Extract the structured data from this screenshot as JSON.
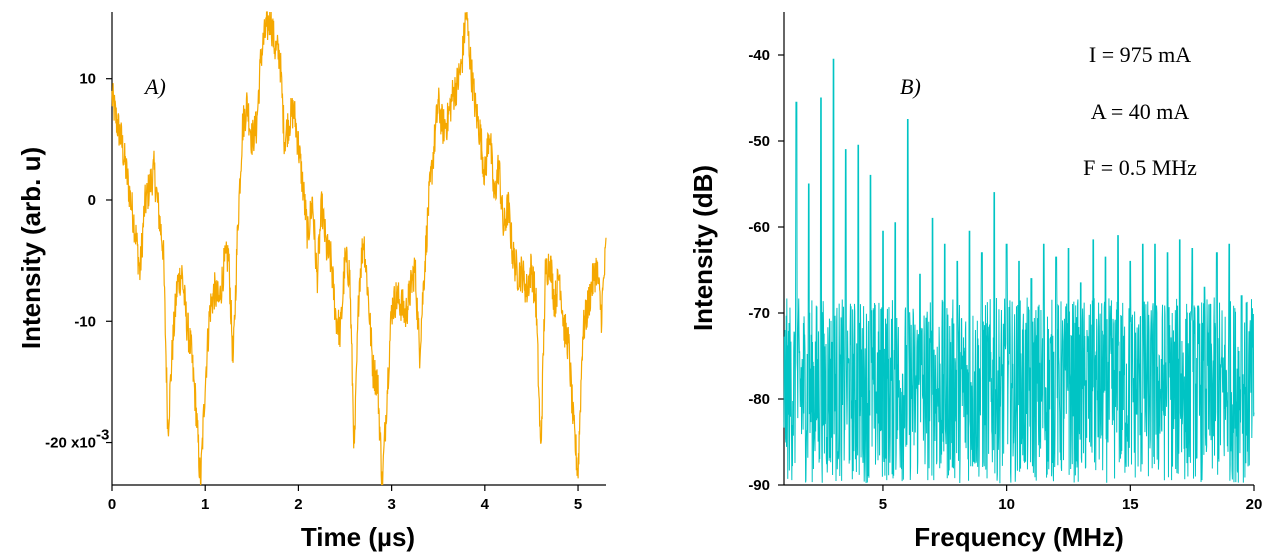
{
  "colors": {
    "left_trace": "#F5A800",
    "right_trace": "#00C4C4"
  },
  "chart_data": [
    {
      "type": "line",
      "panel_label": "A)",
      "xlabel": "Time (µs)",
      "ylabel": "Intensity (arb. u)",
      "xlim": [
        0,
        5.3
      ],
      "ylim": [
        -0.0235,
        0.0155
      ],
      "x_ticks": [
        {
          "value": 0,
          "label": "0"
        },
        {
          "value": 1,
          "label": "1"
        },
        {
          "value": 2,
          "label": "2"
        },
        {
          "value": 3,
          "label": "3"
        },
        {
          "value": 4,
          "label": "4"
        },
        {
          "value": 5,
          "label": "5"
        }
      ],
      "y_ticks": [
        {
          "value": 0.01,
          "label": "10"
        },
        {
          "value": 0,
          "label": "0"
        },
        {
          "value": -0.01,
          "label": "-10"
        },
        {
          "value": -0.02,
          "label": "-20 x10"
        }
      ],
      "y_tick_exponent": "-3",
      "series": [
        {
          "color": "#F5A800",
          "x": [
            0,
            0.05,
            0.1,
            0.15,
            0.2,
            0.25,
            0.3,
            0.35,
            0.4,
            0.45,
            0.5,
            0.55,
            0.6,
            0.65,
            0.7,
            0.75,
            0.8,
            0.85,
            0.9,
            0.95,
            1.0,
            1.05,
            1.1,
            1.15,
            1.2,
            1.25,
            1.3,
            1.35,
            1.4,
            1.45,
            1.5,
            1.55,
            1.6,
            1.65,
            1.7,
            1.75,
            1.8,
            1.85,
            1.9,
            1.95,
            2.0,
            2.05,
            2.1,
            2.15,
            2.2,
            2.25,
            2.3,
            2.35,
            2.4,
            2.45,
            2.5,
            2.55,
            2.6,
            2.65,
            2.7,
            2.75,
            2.8,
            2.85,
            2.9,
            2.95,
            3.0,
            3.05,
            3.1,
            3.15,
            3.2,
            3.25,
            3.3,
            3.35,
            3.4,
            3.45,
            3.5,
            3.55,
            3.6,
            3.65,
            3.7,
            3.75,
            3.8,
            3.85,
            3.9,
            3.95,
            4.0,
            4.05,
            4.1,
            4.15,
            4.2,
            4.25,
            4.3,
            4.35,
            4.4,
            4.45,
            4.5,
            4.55,
            4.6,
            4.65,
            4.7,
            4.75,
            4.8,
            4.85,
            4.9,
            4.95,
            5.0,
            5.05,
            5.1,
            5.15,
            5.2,
            5.25,
            5.3
          ],
          "y": [
            0.0085,
            0.0065,
            0.005,
            0.0025,
            0.0,
            -0.0025,
            -0.006,
            -0.0005,
            0.001,
            0.0025,
            -0.001,
            -0.004,
            -0.019,
            -0.012,
            -0.007,
            -0.006,
            -0.01,
            -0.0125,
            -0.017,
            -0.0235,
            -0.015,
            -0.009,
            -0.0075,
            -0.0085,
            -0.0055,
            -0.0045,
            -0.0135,
            -0.002,
            0.006,
            0.008,
            0.005,
            0.006,
            0.012,
            0.014,
            0.015,
            0.0125,
            0.012,
            0.005,
            0.0065,
            0.0075,
            0.0045,
            0.001,
            -0.003,
            0.0,
            -0.0065,
            -0.0005,
            -0.004,
            -0.005,
            -0.0095,
            -0.011,
            -0.005,
            -0.006,
            -0.021,
            -0.007,
            -0.003,
            -0.008,
            -0.014,
            -0.015,
            -0.0235,
            -0.016,
            -0.009,
            -0.008,
            -0.0085,
            -0.0095,
            -0.0075,
            -0.0055,
            -0.0125,
            -0.006,
            0.0,
            0.004,
            0.008,
            0.006,
            0.0065,
            0.0085,
            0.0095,
            0.011,
            0.0155,
            0.011,
            0.0075,
            0.0055,
            0.002,
            0.006,
            0.0,
            0.003,
            -0.0025,
            -0.0005,
            -0.0045,
            -0.006,
            -0.006,
            -0.0075,
            -0.0055,
            -0.0085,
            -0.021,
            -0.006,
            -0.005,
            -0.0085,
            -0.006,
            -0.0105,
            -0.012,
            -0.0185,
            -0.0225,
            -0.011,
            -0.009,
            -0.007,
            -0.0055,
            -0.0095,
            -0.004
          ]
        }
      ]
    },
    {
      "type": "line",
      "panel_label": "B)",
      "xlabel": "Frequency (MHz)",
      "ylabel": "Intensity (dB)",
      "xlim": [
        1,
        20
      ],
      "ylim": [
        -90,
        -35
      ],
      "x_ticks": [
        {
          "value": 5,
          "label": "5"
        },
        {
          "value": 10,
          "label": "10"
        },
        {
          "value": 15,
          "label": "15"
        },
        {
          "value": 20,
          "label": "20"
        }
      ],
      "y_ticks": [
        {
          "value": -40,
          "label": "-40"
        },
        {
          "value": -50,
          "label": "-50"
        },
        {
          "value": -60,
          "label": "-60"
        },
        {
          "value": -70,
          "label": "-70"
        },
        {
          "value": -80,
          "label": "-80"
        },
        {
          "value": -90,
          "label": "-90"
        }
      ],
      "annotations": [
        "I = 975  mA",
        "A = 40  mA",
        "F = 0.5  MHz"
      ],
      "noise_floor": {
        "mean_db": -79,
        "low_db": -90,
        "high_db": -66
      },
      "series": [
        {
          "color": "#00C4C4",
          "peaks_x": [
            1.5,
            2.0,
            2.5,
            3.0,
            3.5,
            4.0,
            4.5,
            5.0,
            5.5,
            6.0,
            6.5,
            7.0,
            7.5,
            8.0,
            8.5,
            9.0,
            9.5,
            10.0,
            10.5,
            11.0,
            11.5,
            12.0,
            12.5,
            13.0,
            13.5,
            14.0,
            14.5,
            15.0,
            15.5,
            16.0,
            16.5,
            17.0,
            17.5,
            18.0,
            18.5,
            19.0,
            19.5
          ],
          "peaks_y": [
            -45.5,
            -55,
            -45,
            -40.5,
            -51,
            -50.5,
            -54,
            -60.5,
            -59.5,
            -47.5,
            -65.5,
            -59,
            -62,
            -64,
            -60.5,
            -63,
            -56,
            -62,
            -64,
            -66,
            -62,
            -63.5,
            -62.5,
            -66.5,
            -61.5,
            -63.5,
            -61,
            -64,
            -62,
            -62,
            -63,
            -61.5,
            -62.5,
            -67,
            -63,
            -62,
            -68
          ]
        }
      ]
    }
  ]
}
